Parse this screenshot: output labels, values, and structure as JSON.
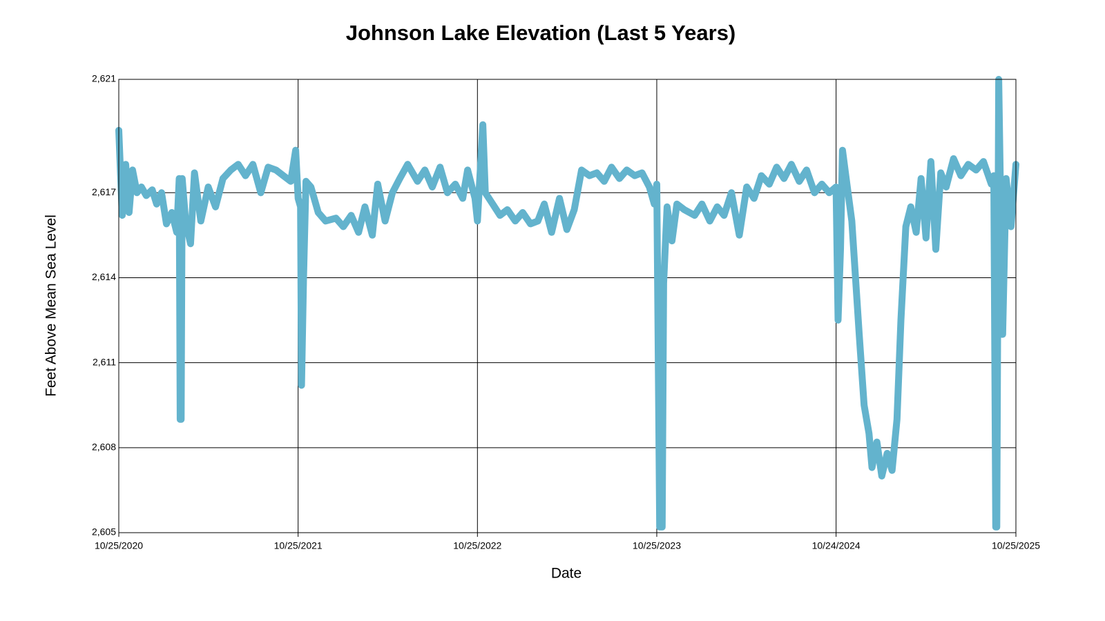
{
  "chart_data": {
    "type": "line",
    "title": "Johnson Lake Elevation (Last 5 Years)",
    "x_label": "Date",
    "y_label": "Feet Above Mean Sea Level",
    "color": "#63b3cd",
    "grid": true,
    "xlim": [
      "10/25/2020",
      "10/25/2025"
    ],
    "xticks": [
      "10/25/2020",
      "10/25/2021",
      "10/25/2022",
      "10/25/2023",
      "10/24/2024",
      "10/25/2025"
    ],
    "ylim": [
      2605,
      2621
    ],
    "yticks": [
      {
        "value": 2605,
        "label": "2,605"
      },
      {
        "value": 2608,
        "label": "2,608"
      },
      {
        "value": 2611,
        "label": "2,611"
      },
      {
        "value": 2614,
        "label": "2,614"
      },
      {
        "value": 2617,
        "label": "2,617"
      },
      {
        "value": 2621,
        "label": "2,621"
      }
    ],
    "x": [
      "10/25/2020",
      "11/01/2020",
      "11/08/2020",
      "11/15/2020",
      "11/22/2020",
      "12/01/2020",
      "12/10/2020",
      "12/20/2020",
      "01/01/2021",
      "01/10/2021",
      "01/20/2021",
      "01/30/2021",
      "02/10/2021",
      "02/20/2021",
      "02/25/2021",
      "02/27/2021",
      "03/01/2021",
      "03/03/2021",
      "03/10/2021",
      "03/20/2021",
      "03/28/2021",
      "04/10/2021",
      "04/25/2021",
      "05/10/2021",
      "05/25/2021",
      "06/10/2021",
      "06/25/2021",
      "07/10/2021",
      "07/25/2021",
      "08/10/2021",
      "08/25/2021",
      "09/10/2021",
      "09/25/2021",
      "10/10/2021",
      "10/20/2021",
      "10/25/2021",
      "10/30/2021",
      "11/01/2021",
      "11/05/2021",
      "11/10/2021",
      "11/20/2021",
      "12/05/2021",
      "12/20/2021",
      "01/10/2022",
      "01/25/2022",
      "02/10/2022",
      "02/25/2022",
      "03/10/2022",
      "03/25/2022",
      "04/05/2022",
      "04/20/2022",
      "05/05/2022",
      "05/20/2022",
      "06/05/2022",
      "06/25/2022",
      "07/10/2022",
      "07/25/2022",
      "08/10/2022",
      "08/25/2022",
      "09/10/2022",
      "09/25/2022",
      "10/05/2022",
      "10/20/2022",
      "10/25/2022",
      "11/05/2022",
      "11/10/2022",
      "11/25/2022",
      "12/10/2022",
      "12/25/2022",
      "01/10/2023",
      "01/25/2023",
      "02/10/2023",
      "02/25/2023",
      "03/10/2023",
      "03/25/2023",
      "04/10/2023",
      "04/25/2023",
      "05/10/2023",
      "05/25/2023",
      "06/10/2023",
      "06/25/2023",
      "07/10/2023",
      "07/25/2023",
      "08/10/2023",
      "08/25/2023",
      "09/10/2023",
      "09/25/2023",
      "10/10/2023",
      "10/20/2023",
      "10/25/2023",
      "10/31/2023",
      "11/05/2023",
      "11/08/2023",
      "11/15/2023",
      "11/25/2023",
      "12/05/2023",
      "12/20/2023",
      "01/10/2024",
      "01/25/2024",
      "02/10/2024",
      "02/25/2024",
      "03/10/2024",
      "03/25/2024",
      "04/10/2024",
      "04/25/2024",
      "05/10/2024",
      "05/25/2024",
      "06/10/2024",
      "06/25/2024",
      "07/10/2024",
      "07/25/2024",
      "08/10/2024",
      "08/25/2024",
      "09/10/2024",
      "09/25/2024",
      "10/10/2024",
      "10/24/2024",
      "10/28/2024",
      "11/02/2024",
      "11/06/2024",
      "11/15/2024",
      "11/25/2024",
      "12/10/2024",
      "12/20/2024",
      "12/30/2024",
      "01/05/2025",
      "01/15/2025",
      "01/25/2025",
      "02/05/2025",
      "02/15/2025",
      "02/25/2025",
      "03/05/2025",
      "03/15/2025",
      "03/25/2025",
      "04/05/2025",
      "04/15/2025",
      "04/25/2025",
      "05/05/2025",
      "05/15/2025",
      "05/25/2025",
      "06/05/2025",
      "06/20/2025",
      "07/05/2025",
      "07/20/2025",
      "08/05/2025",
      "08/20/2025",
      "09/05/2025",
      "09/10/2025",
      "09/14/2025",
      "09/16/2025",
      "09/20/2025",
      "09/28/2025",
      "10/05/2025",
      "10/15/2025",
      "10/25/2025"
    ],
    "values": [
      2619.2,
      2616.2,
      2618.0,
      2616.3,
      2617.8,
      2617.0,
      2617.2,
      2616.9,
      2617.1,
      2616.6,
      2617.0,
      2615.9,
      2616.3,
      2615.6,
      2617.5,
      2609.0,
      2609.0,
      2617.5,
      2616.0,
      2615.2,
      2617.7,
      2616.0,
      2617.2,
      2616.5,
      2617.5,
      2617.8,
      2618.0,
      2617.6,
      2618.0,
      2617.0,
      2617.9,
      2617.8,
      2617.6,
      2617.4,
      2618.5,
      2616.8,
      2616.5,
      2610.2,
      2614.0,
      2617.4,
      2617.2,
      2616.3,
      2616.0,
      2616.1,
      2615.8,
      2616.2,
      2615.6,
      2616.5,
      2615.5,
      2617.3,
      2616.0,
      2617.0,
      2617.5,
      2618.0,
      2617.4,
      2617.8,
      2617.2,
      2617.9,
      2617.0,
      2617.3,
      2616.8,
      2617.8,
      2616.8,
      2616.0,
      2619.4,
      2617.0,
      2616.6,
      2616.2,
      2616.4,
      2616.0,
      2616.3,
      2615.9,
      2616.0,
      2616.6,
      2615.6,
      2616.8,
      2615.7,
      2616.4,
      2617.8,
      2617.6,
      2617.7,
      2617.4,
      2617.9,
      2617.5,
      2617.8,
      2617.6,
      2617.7,
      2617.2,
      2616.6,
      2617.3,
      2605.2,
      2605.2,
      2613.8,
      2616.5,
      2615.3,
      2616.6,
      2616.4,
      2616.2,
      2616.6,
      2616.0,
      2616.5,
      2616.2,
      2617.0,
      2615.5,
      2617.2,
      2616.8,
      2617.6,
      2617.3,
      2617.9,
      2617.5,
      2618.0,
      2617.4,
      2617.8,
      2617.0,
      2617.3,
      2617.0,
      2617.2,
      2612.5,
      2615.0,
      2618.5,
      2617.3,
      2616.0,
      2612.0,
      2609.5,
      2608.5,
      2607.3,
      2608.2,
      2607.0,
      2607.8,
      2607.2,
      2609.0,
      2612.5,
      2615.8,
      2616.5,
      2615.6,
      2617.5,
      2615.4,
      2618.1,
      2615.0,
      2617.7,
      2617.2,
      2618.2,
      2617.6,
      2618.0,
      2617.8,
      2618.1,
      2617.3,
      2617.6,
      2605.2,
      2605.2,
      2621.0,
      2612.0,
      2617.5,
      2615.8,
      2618.0
    ]
  }
}
